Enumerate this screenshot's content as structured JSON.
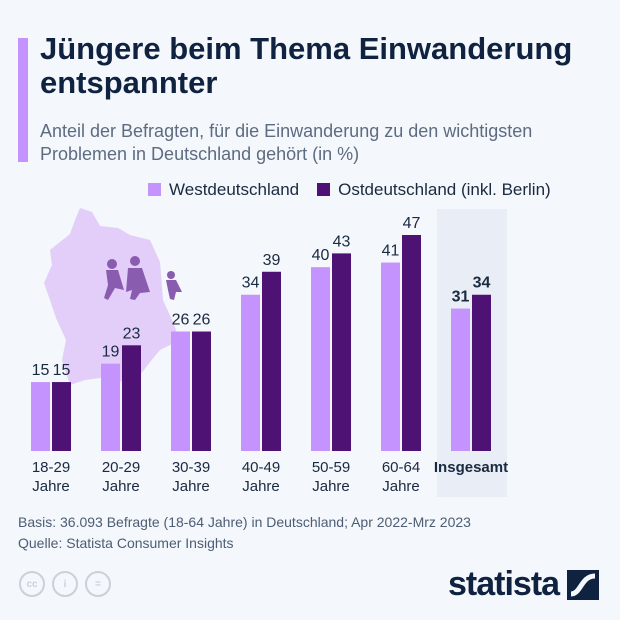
{
  "title": "Jüngere beim Thema Einwanderung entspannter",
  "subtitle": "Anteil der Befragten, für die Einwanderung zu den wichtigsten Problemen in Deutschland gehört (in %)",
  "footer": {
    "basis": "Basis: 36.093 Befragte (18-64 Jahre) in Deutschland; Apr 2022-Mrz 2023",
    "source": "Quelle: Statista Consumer Insights"
  },
  "logo": "statista",
  "license_icons": [
    "cc-icon",
    "by-icon",
    "nd-icon"
  ],
  "chart_data": {
    "type": "bar",
    "categories": [
      "18-29\nJahre",
      "20-29\nJahre",
      "30-39\nJahre",
      "40-49\nJahre",
      "50-59\nJahre",
      "60-64\nJahre",
      "Insgesamt"
    ],
    "series": [
      {
        "name": "Westdeutschland",
        "values": [
          15,
          19,
          26,
          34,
          40,
          41,
          31
        ],
        "color": "#c493fd"
      },
      {
        "name": "Ostdeutschland (inkl. Berlin)",
        "values": [
          15,
          23,
          26,
          39,
          43,
          47,
          34
        ],
        "color": "#4e1275"
      }
    ],
    "highlight_category": "Insgesamt",
    "ylim": [
      0,
      47
    ],
    "grid": false,
    "legend": "top"
  }
}
